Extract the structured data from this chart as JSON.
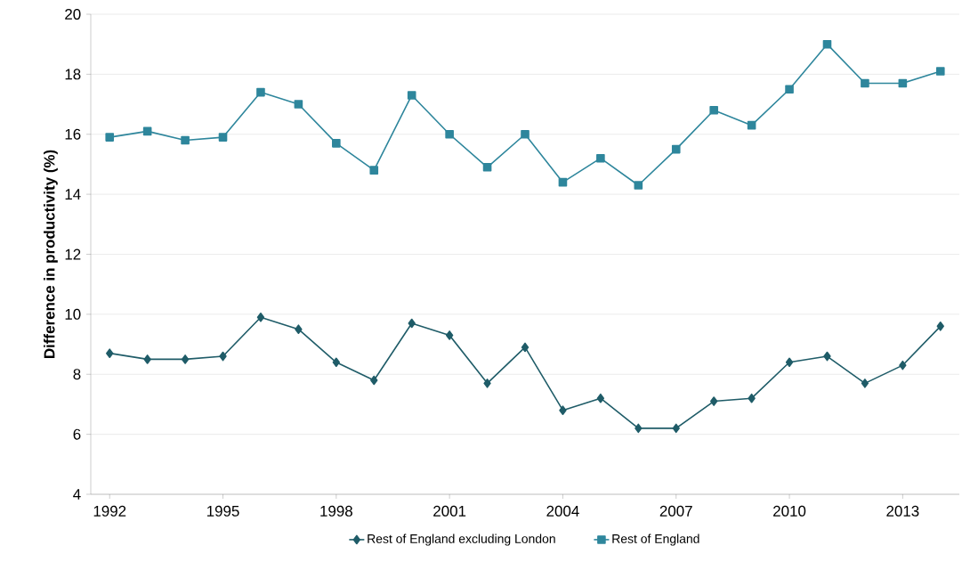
{
  "chart_data": {
    "type": "line",
    "ylabel": "Difference in productivity (%)",
    "x": [
      1992,
      1993,
      1994,
      1995,
      1996,
      1997,
      1998,
      1999,
      2000,
      2001,
      2002,
      2003,
      2004,
      2005,
      2006,
      2007,
      2008,
      2009,
      2010,
      2011,
      2012,
      2013,
      2014
    ],
    "series": [
      {
        "name": "Rest of England excluding London",
        "color": "#1f5c68",
        "marker": "diamond",
        "values": [
          8.7,
          8.5,
          8.5,
          8.6,
          9.9,
          9.5,
          8.4,
          7.8,
          9.7,
          9.3,
          7.7,
          8.9,
          6.8,
          7.2,
          6.2,
          6.2,
          7.1,
          7.2,
          8.4,
          8.6,
          7.7,
          8.3,
          9.6
        ]
      },
      {
        "name": "Rest of England",
        "color": "#2e869c",
        "marker": "square",
        "values": [
          15.9,
          16.1,
          15.8,
          15.9,
          17.4,
          17.0,
          15.7,
          14.8,
          17.3,
          16.0,
          14.9,
          16.0,
          14.4,
          15.2,
          14.3,
          15.5,
          16.8,
          16.3,
          17.5,
          19.0,
          17.7,
          17.7,
          18.1
        ]
      }
    ],
    "xlim": [
      1991.5,
      2014.5
    ],
    "xticks": [
      1992,
      1995,
      1998,
      2001,
      2004,
      2007,
      2010,
      2013
    ],
    "ylim": [
      4,
      20
    ],
    "yticks": [
      4,
      6,
      8,
      10,
      12,
      14,
      16,
      18,
      20
    ],
    "grid": "y",
    "legend": "bottom",
    "line_style": "solid"
  }
}
